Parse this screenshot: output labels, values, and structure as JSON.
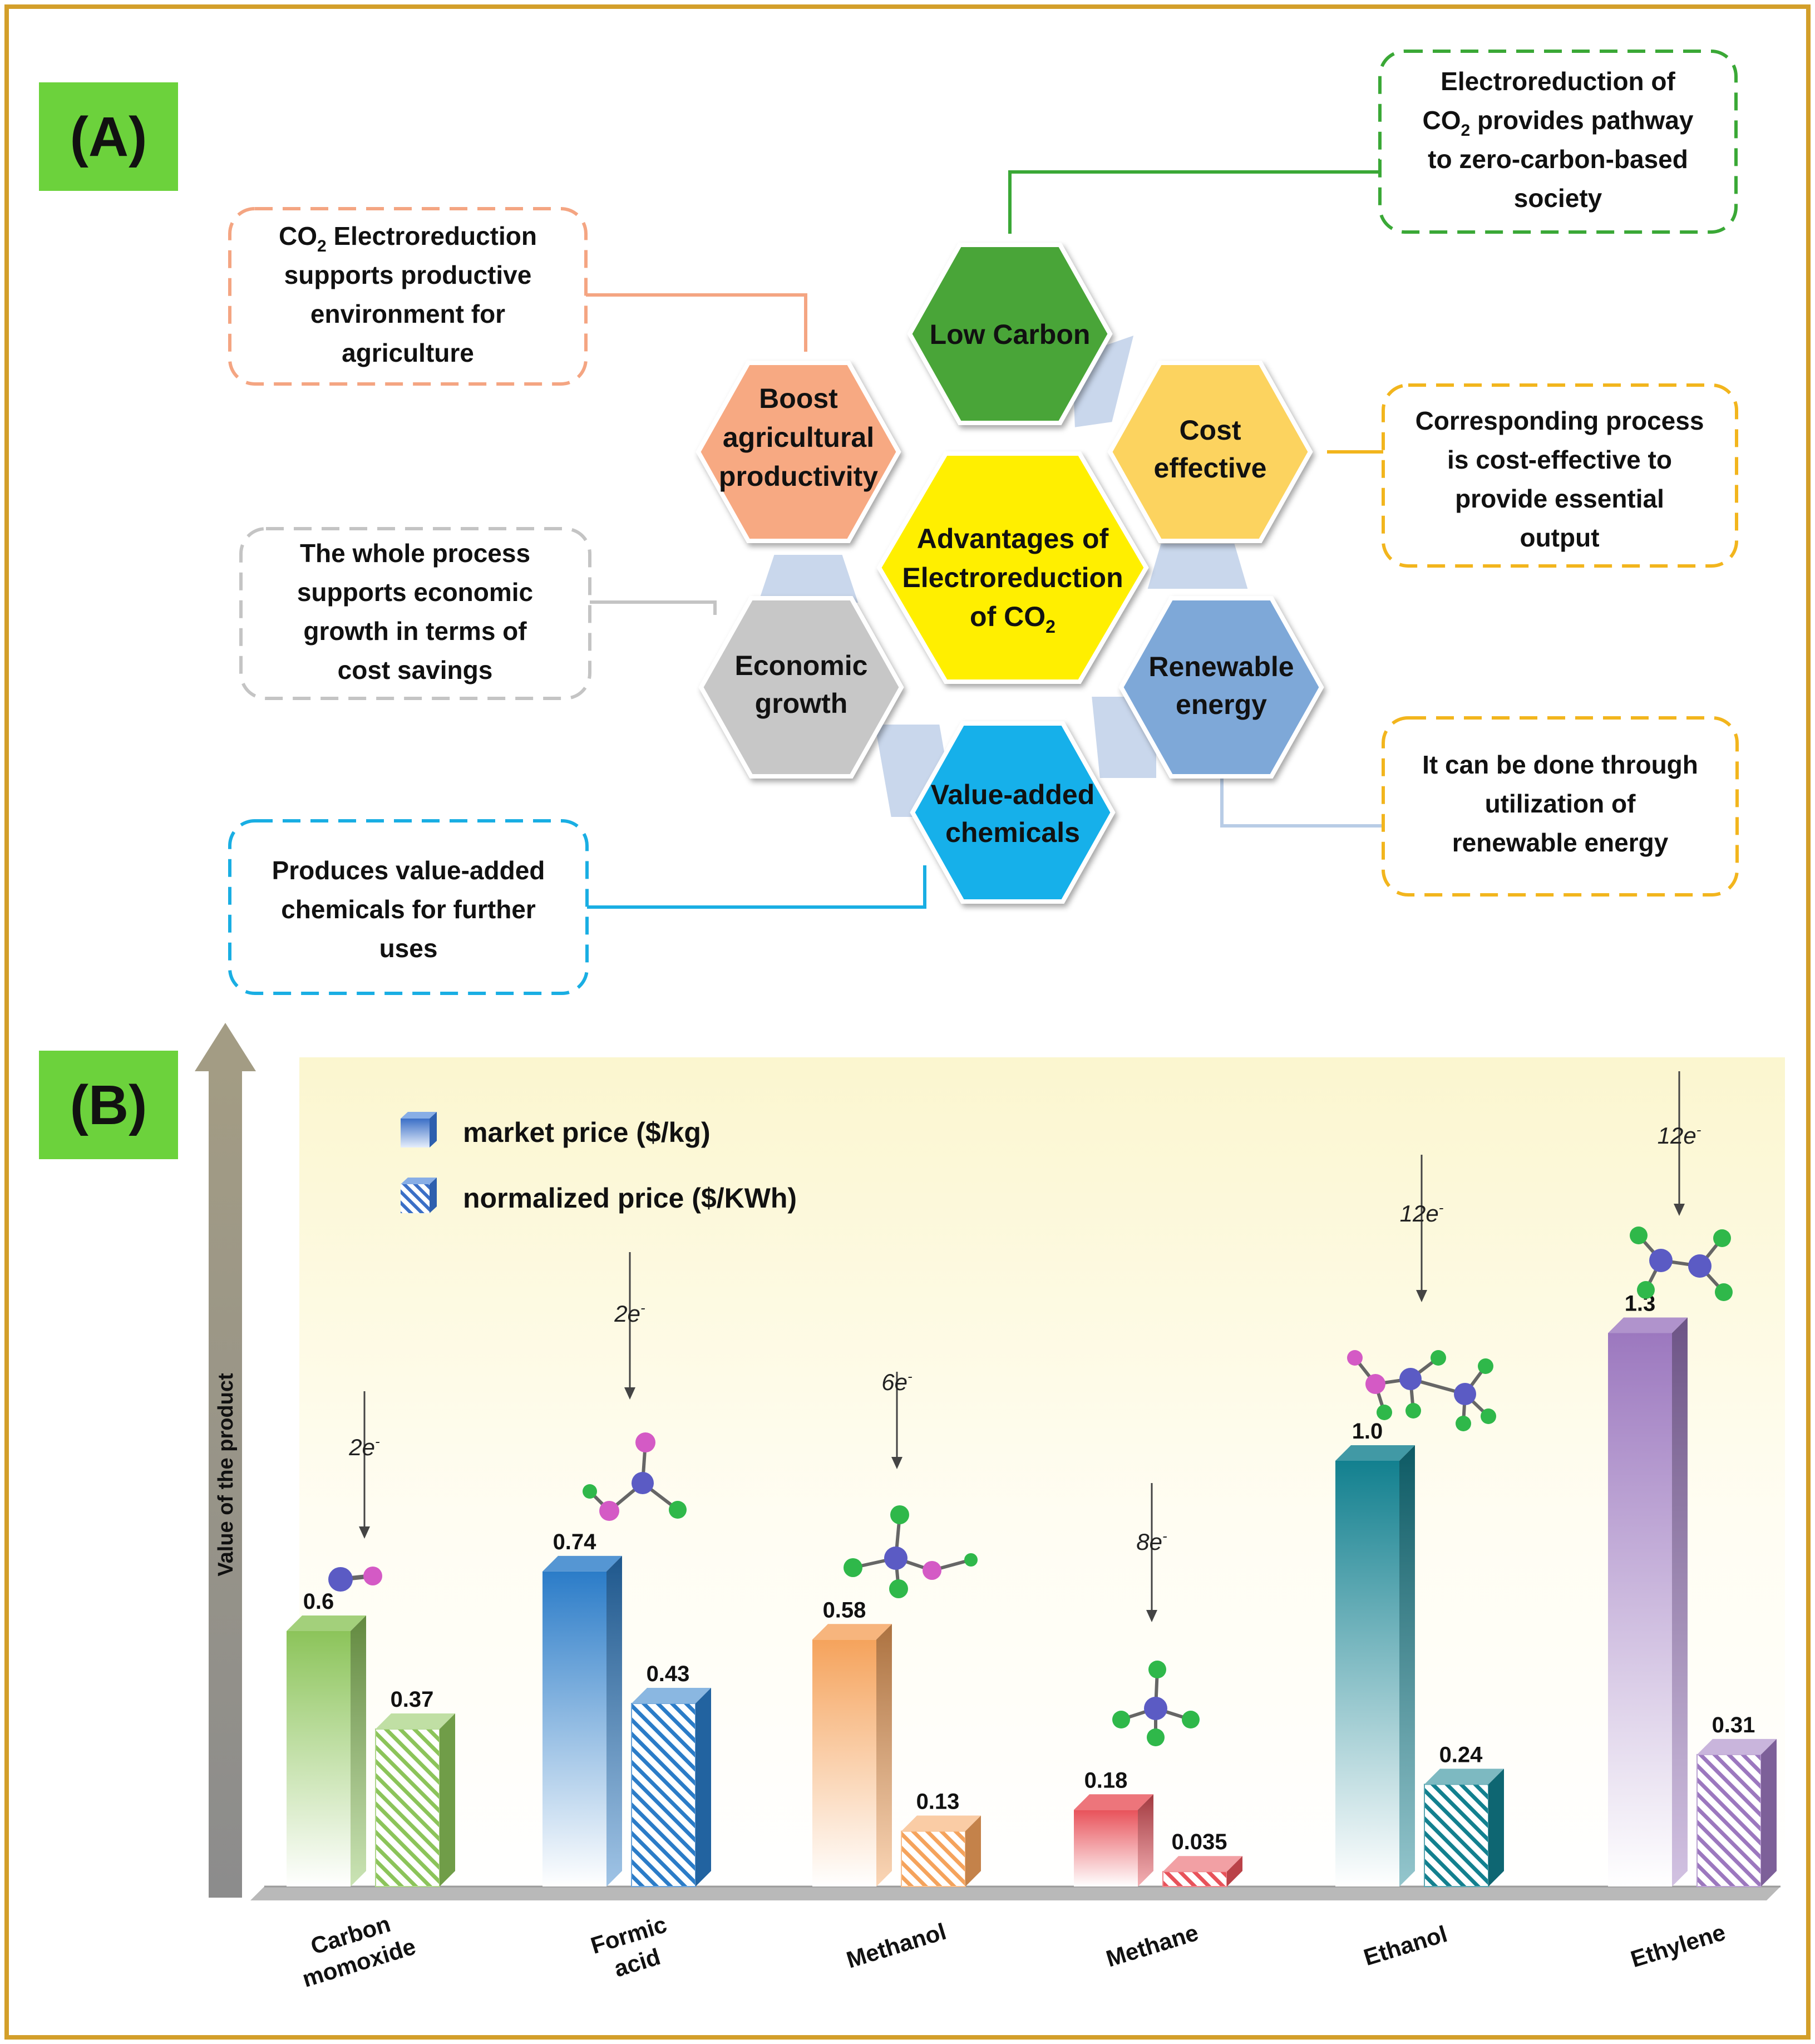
{
  "panel_a": {
    "label": "(A)",
    "center": {
      "line1": "Advantages of",
      "line2": "Electroreduction",
      "line3": "of CO",
      "sub": "2"
    },
    "hexagons": [
      {
        "id": "low-carbon",
        "lines": [
          "Low Carbon"
        ],
        "color": "#49a537"
      },
      {
        "id": "cost-effective",
        "lines": [
          "Cost",
          "effective"
        ],
        "color": "#fcd35e"
      },
      {
        "id": "renewable-energy",
        "lines": [
          "Renewable",
          "energy"
        ],
        "color": "#7ea8d8"
      },
      {
        "id": "value-added",
        "lines": [
          "Value-added",
          "chemicals"
        ],
        "color": "#14b0ea"
      },
      {
        "id": "economic-growth",
        "lines": [
          "Economic",
          "growth"
        ],
        "color": "#c7c7c7"
      },
      {
        "id": "agricultural",
        "lines": [
          "Boost",
          "agricultural",
          "productivity"
        ],
        "color": "#f7a982"
      }
    ],
    "callouts": {
      "agriculture": {
        "line1_pre": "CO",
        "line1_sub": "2",
        "line1_post": " Electroreduction",
        "line2": "supports productive",
        "line3": "environment for",
        "line4": "agriculture",
        "color": "#f4a582"
      },
      "low_carbon": {
        "line1": "Electroreduction of",
        "line2_pre": "CO",
        "line2_sub": "2",
        "line2_post": " provides pathway",
        "line3": "to zero-carbon-based",
        "line4": "society",
        "color": "#3aa836"
      },
      "cost": {
        "lines": [
          "Corresponding process",
          "is cost-effective to",
          "provide essential",
          "output"
        ],
        "color": "#f2b51d"
      },
      "economic": {
        "lines": [
          "The whole process",
          "supports economic",
          "growth in terms of",
          "cost savings"
        ],
        "color": "#c4c4c4"
      },
      "renewable": {
        "lines": [
          "It can be done through",
          "utilization of",
          "renewable energy"
        ],
        "color": "#f2b51d"
      },
      "value_added": {
        "lines": [
          "Produces value-added",
          "chemicals for further",
          "uses"
        ],
        "color": "#19aee3"
      }
    }
  },
  "panel_b": {
    "label": "(B)"
  },
  "chart_data": {
    "type": "bar",
    "ylabel": "Value of the product",
    "legend": [
      {
        "label": "market price ($/kg)",
        "style": "solid"
      },
      {
        "label": "normalized price ($/KWh)",
        "style": "hatched"
      }
    ],
    "legend_position": "top-left",
    "categories": [
      {
        "lines": [
          "Carbon",
          "momoxide"
        ],
        "electrons": "2e",
        "market": 0.6,
        "normalized": 0.37,
        "market_label": "0.6",
        "normalized_label": "0.37",
        "color": "#8cc45a"
      },
      {
        "lines": [
          "Formic",
          "acid"
        ],
        "electrons": "2e",
        "market": 0.74,
        "normalized": 0.43,
        "market_label": "0.74",
        "normalized_label": "0.43",
        "color": "#2b7cc8"
      },
      {
        "lines": [
          "Methanol"
        ],
        "electrons": "6e",
        "market": 0.58,
        "normalized": 0.13,
        "market_label": "0.58",
        "normalized_label": "0.13",
        "color": "#f5a35c"
      },
      {
        "lines": [
          "Methane"
        ],
        "electrons": "8e",
        "market": 0.18,
        "normalized": 0.035,
        "market_label": "0.18",
        "normalized_label": "0.035",
        "color": "#e8525a"
      },
      {
        "lines": [
          "Ethanol"
        ],
        "electrons": "12e",
        "market": 1.0,
        "normalized": 0.24,
        "market_label": "1.0",
        "normalized_label": "0.24",
        "color": "#12808f"
      },
      {
        "lines": [
          "Ethylene"
        ],
        "electrons": "12e",
        "market": 1.3,
        "normalized": 0.31,
        "market_label": "1.3",
        "normalized_label": "0.31",
        "color": "#9c78bf"
      }
    ],
    "electron_sup": "-",
    "ylim": [
      0,
      1.5
    ]
  }
}
